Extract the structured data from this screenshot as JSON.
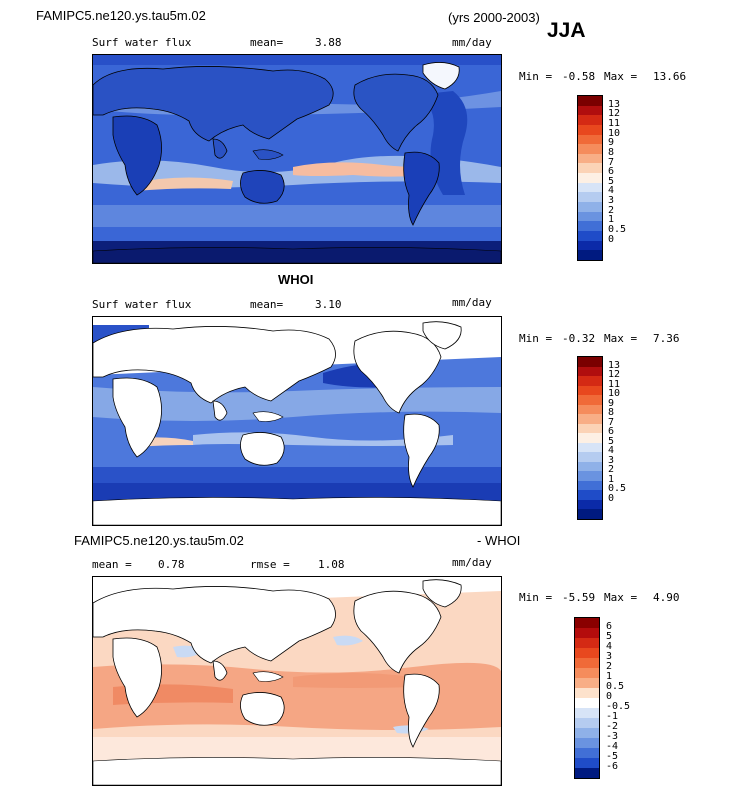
{
  "header": {
    "model_title": "FAMIPC5.ne120.ys.tau5m.02",
    "years": "(yrs 2000-2003)",
    "season": "JJA"
  },
  "panels": [
    {
      "id": "model",
      "variable": "Surf water flux",
      "mean_label": "mean=",
      "mean_value": "3.88",
      "units": "mm/day",
      "min_label": "Min =",
      "min_value": "-0.58",
      "max_label": "Max =",
      "max_value": "13.66"
    },
    {
      "id": "obs",
      "subtitle": "WHOI",
      "variable": "Surf water flux",
      "mean_label": "mean=",
      "mean_value": "3.10",
      "units": "mm/day",
      "min_label": "Min =",
      "min_value": "-0.32",
      "max_label": "Max =",
      "max_value": "7.36"
    },
    {
      "id": "diff",
      "title_left": "FAMIPC5.ne120.ys.tau5m.02",
      "title_right": "- WHOI",
      "mean_label": "mean =",
      "mean_value": "0.78",
      "rmse_label": "rmse =",
      "rmse_value": "1.08",
      "units": "mm/day",
      "min_label": "Min =",
      "min_value": "-5.59",
      "max_label": "Max =",
      "max_value": "4.90"
    }
  ],
  "colorbar_abs": {
    "labels": [
      "13",
      "12",
      "11",
      "10",
      "9",
      "8",
      "7",
      "6",
      "5",
      "4",
      "3",
      "2",
      "1",
      "0.5",
      "0"
    ],
    "colors": [
      "#7a0000",
      "#b00e0e",
      "#d42a14",
      "#e8481e",
      "#f06a38",
      "#f58c5c",
      "#f8ae86",
      "#fbd3b6",
      "#fdf0e4",
      "#d7e4f7",
      "#b5ccf0",
      "#8fb1e8",
      "#6a93e0",
      "#416fd6",
      "#1f4cc8",
      "#0b2aa8",
      "#001a80"
    ]
  },
  "colorbar_diff": {
    "labels": [
      "6",
      "5",
      "4",
      "3",
      "2",
      "1",
      "0.5",
      "0",
      "-0.5",
      "-1",
      "-2",
      "-3",
      "-4",
      "-5",
      "-6"
    ],
    "colors": [
      "#8a0000",
      "#b40c0c",
      "#d42a14",
      "#e8481e",
      "#f06a38",
      "#f58c5c",
      "#f8ae86",
      "#fde2cc",
      "#ffffff",
      "#d7e4f7",
      "#b5ccf0",
      "#8fb1e8",
      "#6a93e0",
      "#416fd6",
      "#1f4cc8",
      "#001a80"
    ]
  }
}
